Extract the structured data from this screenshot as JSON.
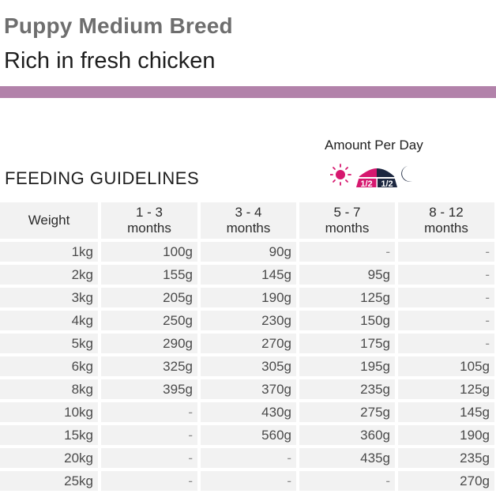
{
  "header": {
    "title": "Puppy Medium Breed",
    "subtitle": "Rich in fresh chicken",
    "band_color": "#b282aa"
  },
  "amount": {
    "label": "Amount Per Day",
    "icons": [
      "sun-icon",
      "food-bowl-icon",
      "moon-icon"
    ],
    "morning_portion": "1/2",
    "evening_portion": "1/2",
    "morning_color": "#d6186f",
    "evening_color": "#1c2740"
  },
  "section_title": "FEEDING GUIDELINES",
  "table": {
    "headers": [
      {
        "line1": "Weight",
        "line2": ""
      },
      {
        "line1": "1 - 3",
        "line2": "months"
      },
      {
        "line1": "3 - 4",
        "line2": "months"
      },
      {
        "line1": "5 - 7",
        "line2": "months"
      },
      {
        "line1": "8 - 12",
        "line2": "months"
      }
    ],
    "rows": [
      [
        "1kg",
        "100g",
        "90g",
        "-",
        "-"
      ],
      [
        "2kg",
        "155g",
        "145g",
        "95g",
        "-"
      ],
      [
        "3kg",
        "205g",
        "190g",
        "125g",
        "-"
      ],
      [
        "4kg",
        "250g",
        "230g",
        "150g",
        "-"
      ],
      [
        "5kg",
        "290g",
        "270g",
        "175g",
        "-"
      ],
      [
        "6kg",
        "325g",
        "305g",
        "195g",
        "105g"
      ],
      [
        "8kg",
        "395g",
        "370g",
        "235g",
        "125g"
      ],
      [
        "10kg",
        "-",
        "430g",
        "275g",
        "145g"
      ],
      [
        "15kg",
        "-",
        "560g",
        "360g",
        "190g"
      ],
      [
        "20kg",
        "-",
        "-",
        "435g",
        "235g"
      ],
      [
        "25kg",
        "-",
        "-",
        "-",
        "270g"
      ]
    ]
  }
}
